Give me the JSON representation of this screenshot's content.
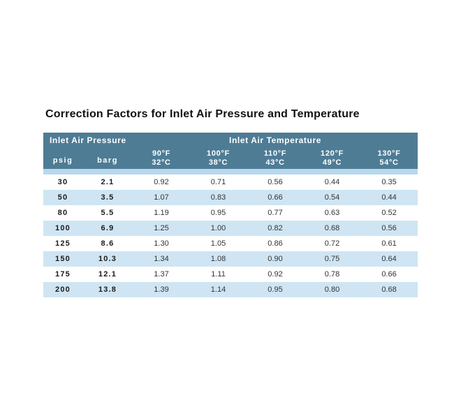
{
  "chart_data": {
    "type": "table",
    "title": "Correction Factors for Inlet Air Pressure and Temperature",
    "group_headers": [
      {
        "label": "Inlet Air Pressure",
        "colspan": 2
      },
      {
        "label": "Inlet Air Temperature",
        "colspan": 5
      }
    ],
    "columns": [
      {
        "label": "psig"
      },
      {
        "label": "barg"
      },
      {
        "line1": "90°F",
        "line2": "32°C"
      },
      {
        "line1": "100°F",
        "line2": "38°C"
      },
      {
        "line1": "110°F",
        "line2": "43°C"
      },
      {
        "line1": "120°F",
        "line2": "49°C"
      },
      {
        "line1": "130°F",
        "line2": "54°C"
      }
    ],
    "rows": [
      [
        "30",
        "2.1",
        "0.92",
        "0.71",
        "0.56",
        "0.44",
        "0.35"
      ],
      [
        "50",
        "3.5",
        "1.07",
        "0.83",
        "0.66",
        "0.54",
        "0.44"
      ],
      [
        "80",
        "5.5",
        "1.19",
        "0.95",
        "0.77",
        "0.63",
        "0.52"
      ],
      [
        "100",
        "6.9",
        "1.25",
        "1.00",
        "0.82",
        "0.68",
        "0.56"
      ],
      [
        "125",
        "8.6",
        "1.30",
        "1.05",
        "0.86",
        "0.72",
        "0.61"
      ],
      [
        "150",
        "10.3",
        "1.34",
        "1.08",
        "0.90",
        "0.75",
        "0.64"
      ],
      [
        "175",
        "12.1",
        "1.37",
        "1.11",
        "0.92",
        "0.78",
        "0.66"
      ],
      [
        "200",
        "13.8",
        "1.39",
        "1.14",
        "0.95",
        "0.80",
        "0.68"
      ]
    ]
  },
  "theme": {
    "header_bg": "#4e7c95",
    "header_text": "#ffffff",
    "row_alt": "#cfe5f3",
    "stripe": "#b9d8ee",
    "text": "#333333",
    "title_color": "#121212"
  }
}
